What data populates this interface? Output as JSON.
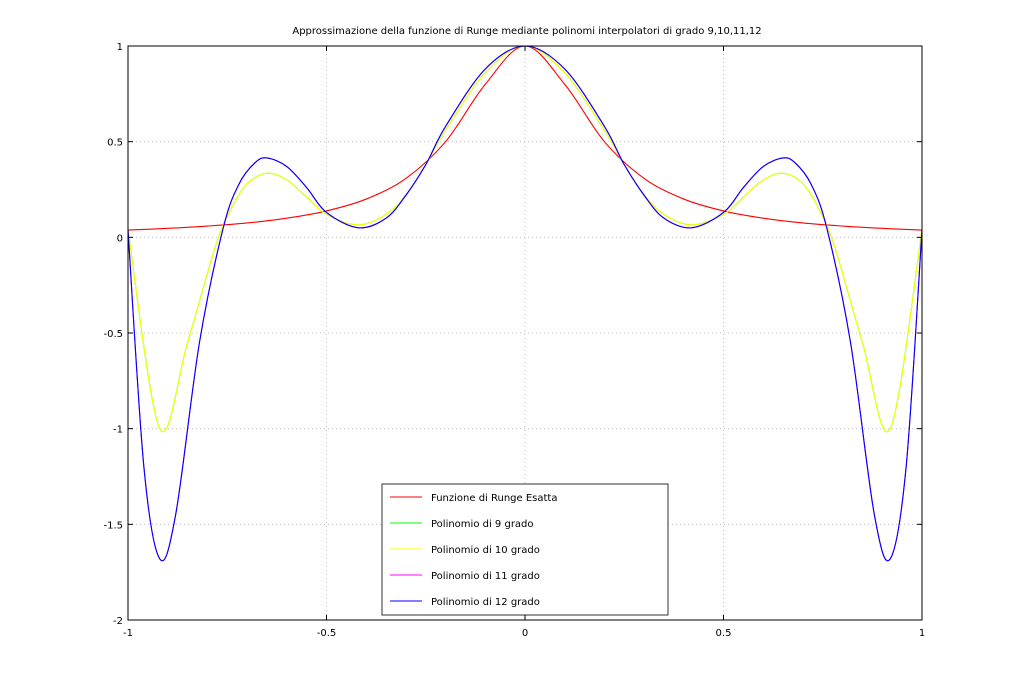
{
  "chart_data": {
    "type": "line",
    "title": "Approssimazione della funzione di Runge mediante polinomi interpolatori di grado 9,10,11,12",
    "xlabel": "",
    "ylabel": "",
    "xlim": [
      -1,
      1
    ],
    "ylim": [
      -2,
      1
    ],
    "grid": true,
    "legend_position": "bottom-center",
    "x_ticks": [
      -1,
      -0.5,
      0,
      0.5,
      1
    ],
    "x_tick_labels": [
      "-1",
      "-0.5",
      "0",
      "0.5",
      "1"
    ],
    "y_ticks": [
      -2,
      -1.5,
      -1,
      -0.5,
      0,
      0.5,
      1
    ],
    "y_tick_labels": [
      "-2",
      "-1.5",
      "-1",
      "-0.5",
      "0",
      "0.5",
      "1"
    ],
    "series": [
      {
        "name": "Funzione di Runge Esatta",
        "color": "#ff0000",
        "x": [
          -1,
          -0.9,
          -0.8,
          -0.7,
          -0.6,
          -0.5,
          -0.4,
          -0.3,
          -0.2,
          -0.1,
          0,
          0.1,
          0.2,
          0.3,
          0.4,
          0.5,
          0.6,
          0.7,
          0.8,
          0.9,
          1
        ],
        "values": [
          0.038,
          0.047,
          0.059,
          0.075,
          0.1,
          0.138,
          0.2,
          0.308,
          0.5,
          0.8,
          1,
          0.8,
          0.5,
          0.308,
          0.2,
          0.138,
          0.1,
          0.075,
          0.059,
          0.047,
          0.038
        ]
      },
      {
        "name": "Polinomio di 9 grado",
        "color": "#00ff00",
        "x": [
          -1,
          -0.92,
          -0.85,
          -0.78,
          -0.74,
          -0.7,
          -0.65,
          -0.6,
          -0.55,
          -0.5,
          -0.42,
          -0.35,
          -0.3,
          -0.25,
          -0.2,
          -0.1,
          0,
          0.1,
          0.2,
          0.25,
          0.3,
          0.35,
          0.42,
          0.5,
          0.55,
          0.6,
          0.65,
          0.7,
          0.74,
          0.78,
          0.85,
          0.92,
          1
        ],
        "values": [
          0.038,
          -1.0,
          -0.55,
          -0.05,
          0.15,
          0.28,
          0.335,
          0.3,
          0.21,
          0.12,
          0.065,
          0.12,
          0.22,
          0.38,
          0.56,
          0.86,
          1.0,
          0.86,
          0.56,
          0.38,
          0.22,
          0.12,
          0.065,
          0.12,
          0.21,
          0.3,
          0.335,
          0.28,
          0.15,
          -0.05,
          -0.55,
          -1.0,
          0.038
        ]
      },
      {
        "name": "Polinomio di 10 grado",
        "color": "#ffff00",
        "x": [
          -1,
          -0.92,
          -0.85,
          -0.78,
          -0.74,
          -0.7,
          -0.65,
          -0.6,
          -0.55,
          -0.5,
          -0.42,
          -0.35,
          -0.3,
          -0.25,
          -0.2,
          -0.1,
          0,
          0.1,
          0.2,
          0.25,
          0.3,
          0.35,
          0.42,
          0.5,
          0.55,
          0.6,
          0.65,
          0.7,
          0.74,
          0.78,
          0.85,
          0.92,
          1
        ],
        "values": [
          0.038,
          -1.0,
          -0.55,
          -0.05,
          0.15,
          0.28,
          0.335,
          0.3,
          0.21,
          0.12,
          0.065,
          0.12,
          0.22,
          0.38,
          0.56,
          0.86,
          1.0,
          0.86,
          0.56,
          0.38,
          0.22,
          0.12,
          0.065,
          0.12,
          0.21,
          0.3,
          0.335,
          0.28,
          0.15,
          -0.05,
          -0.55,
          -1.0,
          0.038
        ]
      },
      {
        "name": "Polinomio di 11 grado",
        "color": "#ff00ff",
        "x": [
          -1,
          -0.96,
          -0.92,
          -0.88,
          -0.82,
          -0.76,
          -0.72,
          -0.68,
          -0.65,
          -0.6,
          -0.55,
          -0.5,
          -0.42,
          -0.35,
          -0.3,
          -0.25,
          -0.2,
          -0.1,
          0,
          0.1,
          0.2,
          0.25,
          0.3,
          0.35,
          0.42,
          0.5,
          0.55,
          0.6,
          0.65,
          0.68,
          0.72,
          0.76,
          0.82,
          0.88,
          0.92,
          0.96,
          1
        ],
        "values": [
          0.038,
          -1.2,
          -1.68,
          -1.45,
          -0.55,
          0.05,
          0.28,
          0.39,
          0.415,
          0.37,
          0.26,
          0.13,
          0.05,
          0.1,
          0.22,
          0.38,
          0.58,
          0.88,
          1.0,
          0.88,
          0.58,
          0.38,
          0.22,
          0.1,
          0.05,
          0.13,
          0.26,
          0.37,
          0.415,
          0.39,
          0.28,
          0.05,
          -0.55,
          -1.45,
          -1.68,
          -1.2,
          0.038
        ]
      },
      {
        "name": "Polinomio di 12 grado",
        "color": "#0000ff",
        "x": [
          -1,
          -0.96,
          -0.92,
          -0.88,
          -0.82,
          -0.76,
          -0.72,
          -0.68,
          -0.65,
          -0.6,
          -0.55,
          -0.5,
          -0.42,
          -0.35,
          -0.3,
          -0.25,
          -0.2,
          -0.1,
          0,
          0.1,
          0.2,
          0.25,
          0.3,
          0.35,
          0.42,
          0.5,
          0.55,
          0.6,
          0.65,
          0.68,
          0.72,
          0.76,
          0.82,
          0.88,
          0.92,
          0.96,
          1
        ],
        "values": [
          0.038,
          -1.2,
          -1.68,
          -1.45,
          -0.55,
          0.05,
          0.28,
          0.39,
          0.415,
          0.37,
          0.26,
          0.13,
          0.05,
          0.1,
          0.22,
          0.38,
          0.58,
          0.88,
          1.0,
          0.88,
          0.58,
          0.38,
          0.22,
          0.1,
          0.05,
          0.13,
          0.26,
          0.37,
          0.415,
          0.39,
          0.28,
          0.05,
          -0.55,
          -1.45,
          -1.68,
          -1.2,
          0.038
        ]
      }
    ]
  }
}
